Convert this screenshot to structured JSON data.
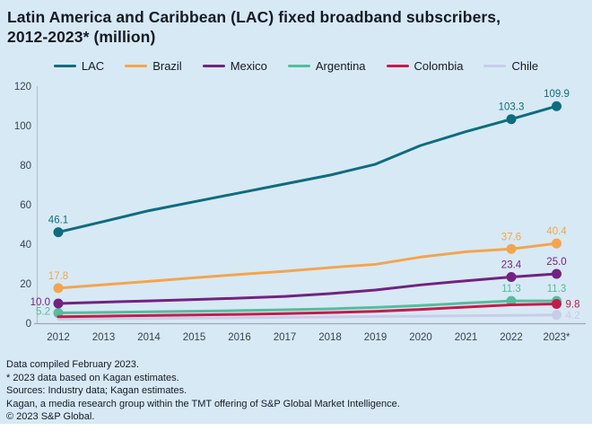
{
  "title": {
    "line1": "Latin America and Caribbean (LAC) fixed broadband subscribers,",
    "line2": "2012-2023* (million)"
  },
  "chart_data": {
    "type": "line",
    "x": [
      "2012",
      "2013",
      "2014",
      "2015",
      "2016",
      "2017",
      "2018",
      "2019",
      "2020",
      "2021",
      "2022",
      "2023*"
    ],
    "ylim": [
      0,
      120
    ],
    "yticks": [
      0,
      20,
      40,
      60,
      80,
      100,
      120
    ],
    "grid": false,
    "legend_position": "top-center",
    "series": [
      {
        "name": "LAC",
        "color": "#0d6c80",
        "values": [
          46.1,
          51.5,
          57.0,
          61.5,
          66.0,
          70.5,
          75.0,
          80.5,
          90.0,
          97.0,
          103.3,
          109.9
        ],
        "dots": [
          0,
          10,
          11
        ],
        "labels": {
          "0": {
            "text": "46.1",
            "pos": "above"
          },
          "10": {
            "text": "103.3",
            "pos": "above"
          },
          "11": {
            "text": "109.9",
            "pos": "above"
          }
        }
      },
      {
        "name": "Brazil",
        "color": "#f3a54d",
        "values": [
          17.8,
          19.5,
          21.2,
          23.0,
          24.7,
          26.3,
          28.2,
          29.8,
          33.5,
          36.2,
          37.6,
          40.4
        ],
        "dots": [
          0,
          10,
          11
        ],
        "labels": {
          "0": {
            "text": "17.8",
            "pos": "above"
          },
          "10": {
            "text": "37.6",
            "pos": "above"
          },
          "11": {
            "text": "40.4",
            "pos": "above"
          }
        }
      },
      {
        "name": "Mexico",
        "color": "#722282",
        "values": [
          10.0,
          10.7,
          11.3,
          12.0,
          12.7,
          13.6,
          15.0,
          16.8,
          19.4,
          21.5,
          23.4,
          25.0
        ],
        "dots": [
          0,
          10,
          11
        ],
        "labels": {
          "0": {
            "text": "10.0",
            "pos": "left"
          },
          "10": {
            "text": "23.4",
            "pos": "above"
          },
          "11": {
            "text": "25.0",
            "pos": "above"
          }
        }
      },
      {
        "name": "Argentina",
        "color": "#54bd9c",
        "values": [
          5.2,
          5.5,
          5.8,
          6.1,
          6.4,
          6.8,
          7.3,
          8.0,
          9.0,
          10.2,
          11.3,
          11.3
        ],
        "dots": [
          0,
          10,
          11
        ],
        "labels": {
          "0": {
            "text": "5.2",
            "pos": "left"
          },
          "10": {
            "text": "11.3",
            "pos": "above"
          },
          "11": {
            "text": "11.3",
            "pos": "above"
          }
        }
      },
      {
        "name": "Colombia",
        "color": "#c41b4b",
        "values": [
          3.3,
          3.6,
          3.9,
          4.2,
          4.5,
          4.9,
          5.4,
          6.0,
          7.0,
          8.2,
          9.3,
          9.8
        ],
        "dots": [
          11
        ],
        "labels": {
          "11": {
            "text": "9.8",
            "pos": "right"
          }
        }
      },
      {
        "name": "Chile",
        "color": "#c7cde8",
        "values": [
          2.0,
          2.2,
          2.4,
          2.6,
          2.8,
          3.0,
          3.2,
          3.4,
          3.6,
          3.8,
          4.0,
          4.2
        ],
        "dots": [
          11
        ],
        "labels": {
          "11": {
            "text": "4.2",
            "pos": "right"
          }
        }
      }
    ]
  },
  "footer": {
    "lines": [
      "Data compiled February 2023.",
      "* 2023 data based on Kagan estimates.",
      "Sources: Industry data; Kagan estimates.",
      "Kagan, a media research group within the TMT offering of S&P Global Market Intelligence.",
      "© 2023 S&P Global."
    ]
  },
  "colors": {
    "background": "#d7e9f5",
    "title_text": "#131a26",
    "axis_text": "#3a4350",
    "y_axis_line": "#b4bfca",
    "x_axis_line": "#9fa8b2"
  }
}
